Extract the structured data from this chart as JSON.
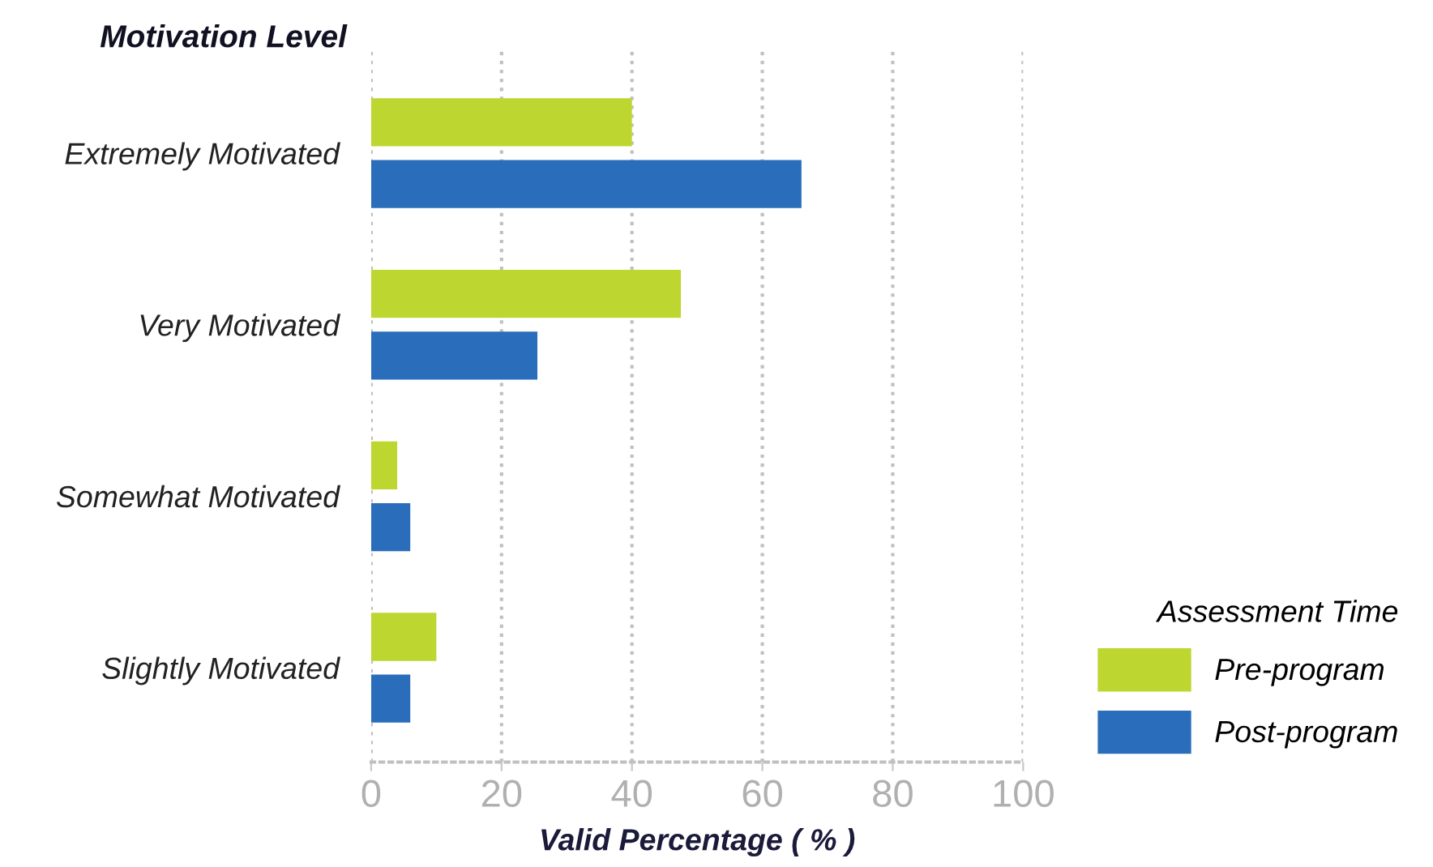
{
  "chart_data": {
    "type": "bar",
    "orientation": "horizontal",
    "ylabel": "Motivation Level",
    "xlabel": "Valid Percentage ( % )",
    "legend_title": "Assessment Time",
    "legend": "right",
    "categories": [
      "Extremely Motivated",
      "Very Motivated",
      "Somewhat Motivated",
      "Slightly Motivated"
    ],
    "series": [
      {
        "name": "Pre-program",
        "color": "#bed630",
        "values": [
          40,
          47.5,
          4,
          10
        ]
      },
      {
        "name": "Post-program",
        "color": "#2a6ebb",
        "values": [
          66,
          25.5,
          6,
          6
        ]
      }
    ],
    "xlim": [
      0,
      100
    ],
    "xticks": [
      0,
      20,
      40,
      60,
      80,
      100
    ],
    "grid": "x"
  }
}
